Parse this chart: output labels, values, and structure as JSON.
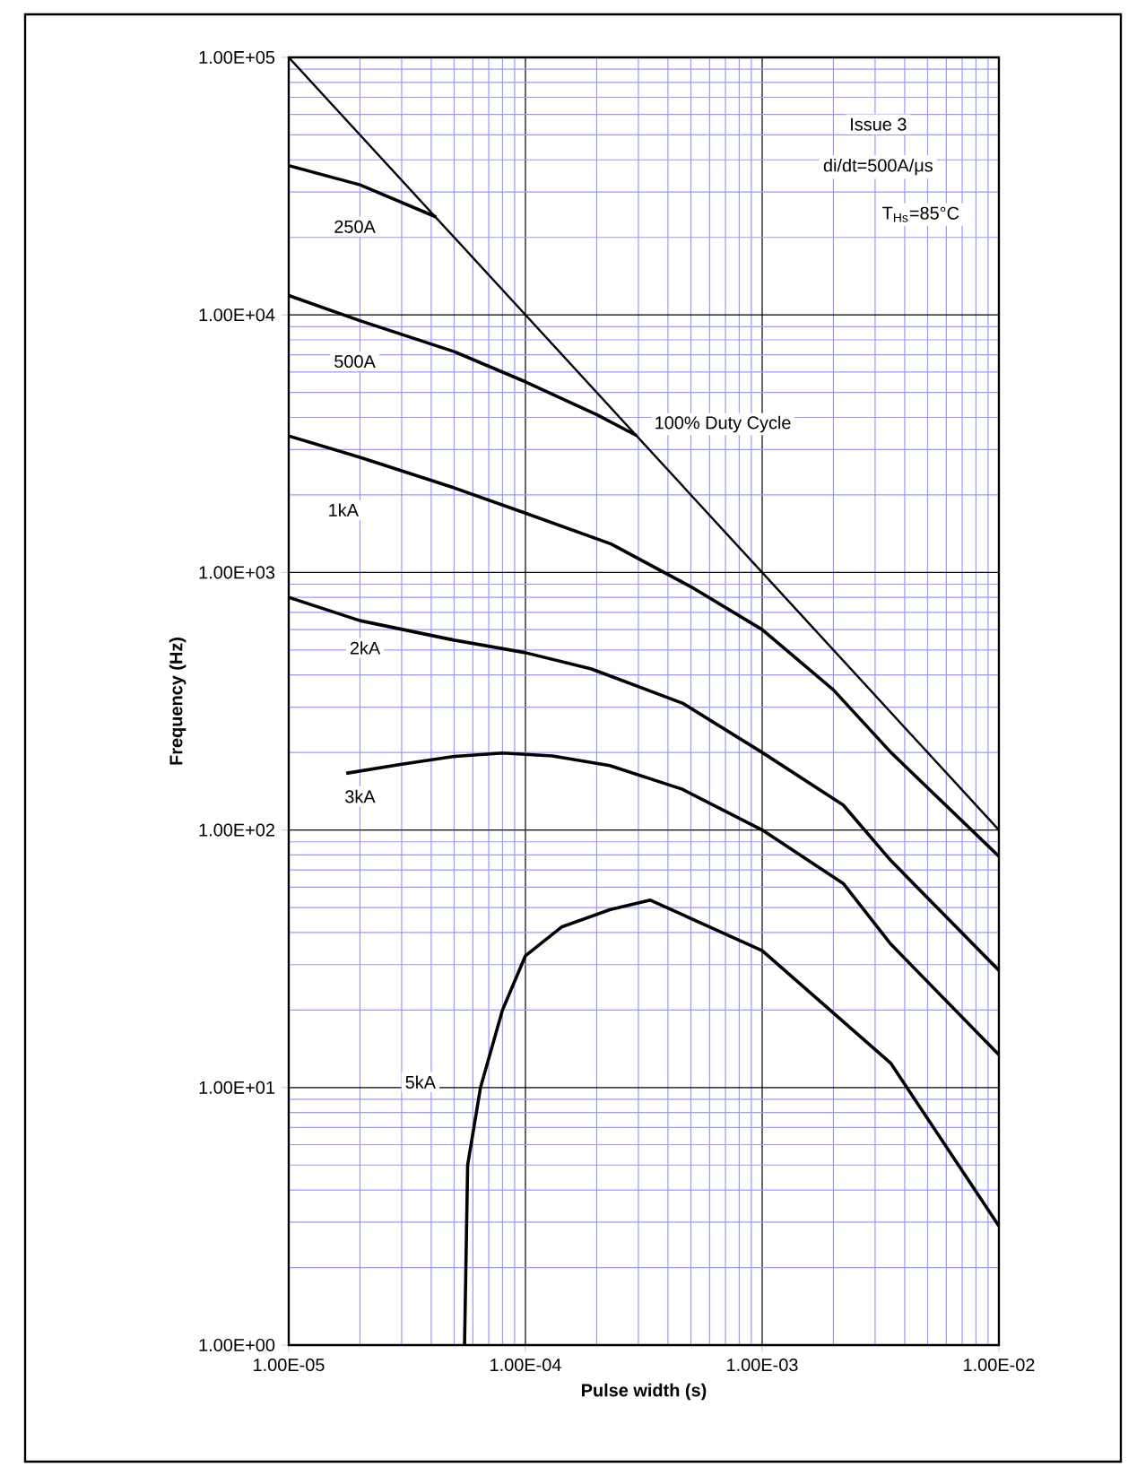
{
  "chart_data": {
    "type": "line",
    "xlabel": "Pulse width (s)",
    "ylabel": "Frequency (Hz)",
    "log": "xy",
    "grid": true,
    "marker": "none",
    "line_style": "solid",
    "xlim": [
      1e-05,
      0.01
    ],
    "ylim": [
      1,
      100000
    ],
    "xticks": [
      {
        "value": 1e-05,
        "label": "1.00E-05"
      },
      {
        "value": 2e-05,
        "label": null
      },
      {
        "value": 3e-05,
        "label": null
      },
      {
        "value": 4e-05,
        "label": null
      },
      {
        "value": 5e-05,
        "label": null
      },
      {
        "value": 6e-05,
        "label": null
      },
      {
        "value": 7e-05,
        "label": null
      },
      {
        "value": 8e-05,
        "label": null
      },
      {
        "value": 9e-05,
        "label": null
      },
      {
        "value": 0.0001,
        "label": "1.00E-04"
      },
      {
        "value": 0.0002,
        "label": null
      },
      {
        "value": 0.0003,
        "label": null
      },
      {
        "value": 0.0004,
        "label": null
      },
      {
        "value": 0.0005,
        "label": null
      },
      {
        "value": 0.0006,
        "label": null
      },
      {
        "value": 0.0007,
        "label": null
      },
      {
        "value": 0.0008,
        "label": null
      },
      {
        "value": 0.0009,
        "label": null
      },
      {
        "value": 0.001,
        "label": "1.00E-03"
      },
      {
        "value": 0.002,
        "label": null
      },
      {
        "value": 0.003,
        "label": null
      },
      {
        "value": 0.004,
        "label": null
      },
      {
        "value": 0.005,
        "label": null
      },
      {
        "value": 0.006,
        "label": null
      },
      {
        "value": 0.007,
        "label": null
      },
      {
        "value": 0.008,
        "label": null
      },
      {
        "value": 0.009,
        "label": null
      },
      {
        "value": 0.01,
        "label": "1.00E-02"
      }
    ],
    "yticks": [
      {
        "value": 1,
        "label": "1.00E+00"
      },
      {
        "value": 2,
        "label": null
      },
      {
        "value": 3,
        "label": null
      },
      {
        "value": 4,
        "label": null
      },
      {
        "value": 5,
        "label": null
      },
      {
        "value": 6,
        "label": null
      },
      {
        "value": 7,
        "label": null
      },
      {
        "value": 8,
        "label": null
      },
      {
        "value": 9,
        "label": null
      },
      {
        "value": 10,
        "label": "1.00E+01"
      },
      {
        "value": 20,
        "label": null
      },
      {
        "value": 30,
        "label": null
      },
      {
        "value": 40,
        "label": null
      },
      {
        "value": 50,
        "label": null
      },
      {
        "value": 60,
        "label": null
      },
      {
        "value": 70,
        "label": null
      },
      {
        "value": 80,
        "label": null
      },
      {
        "value": 90,
        "label": null
      },
      {
        "value": 100,
        "label": "1.00E+02"
      },
      {
        "value": 200,
        "label": null
      },
      {
        "value": 300,
        "label": null
      },
      {
        "value": 400,
        "label": null
      },
      {
        "value": 500,
        "label": null
      },
      {
        "value": 600,
        "label": null
      },
      {
        "value": 700,
        "label": null
      },
      {
        "value": 800,
        "label": null
      },
      {
        "value": 900,
        "label": null
      },
      {
        "value": 1000,
        "label": "1.00E+03"
      },
      {
        "value": 2000,
        "label": null
      },
      {
        "value": 3000,
        "label": null
      },
      {
        "value": 4000,
        "label": null
      },
      {
        "value": 5000,
        "label": null
      },
      {
        "value": 6000,
        "label": null
      },
      {
        "value": 7000,
        "label": null
      },
      {
        "value": 8000,
        "label": null
      },
      {
        "value": 9000,
        "label": null
      },
      {
        "value": 10000,
        "label": "1.00E+04"
      },
      {
        "value": 20000,
        "label": null
      },
      {
        "value": 30000,
        "label": null
      },
      {
        "value": 40000,
        "label": null
      },
      {
        "value": 50000,
        "label": null
      },
      {
        "value": 60000,
        "label": null
      },
      {
        "value": 70000,
        "label": null
      },
      {
        "value": 80000,
        "label": null
      },
      {
        "value": 90000,
        "label": null
      },
      {
        "value": 100000,
        "label": "1.00E+05"
      }
    ],
    "annotations": [
      "Issue 3",
      "di/dt=500A/μs",
      "T$_{Hs}$=85°C"
    ],
    "series": [
      {
        "name": "100% Duty Cycle",
        "color": "#000000",
        "x": [
          1e-05,
          0.0001,
          0.001,
          0.01
        ],
        "values": [
          100000,
          10000,
          1000,
          100
        ]
      },
      {
        "name": "250A",
        "color": "#000000",
        "x": [
          1e-05,
          2e-05,
          4.2e-05
        ],
        "values": [
          38000,
          32000,
          24000
        ]
      },
      {
        "name": "500A",
        "color": "#000000",
        "x": [
          1e-05,
          2e-05,
          5e-05,
          0.0001,
          0.0002,
          0.000295
        ],
        "values": [
          11900,
          9500,
          7200,
          5500,
          4100,
          3400
        ]
      },
      {
        "name": "1kA",
        "color": "#000000",
        "x": [
          1e-05,
          2e-05,
          5e-05,
          0.0001,
          0.00023,
          0.0005,
          0.001,
          0.002,
          0.0035,
          0.01
        ],
        "values": [
          3390,
          2800,
          2130,
          1700,
          1290,
          880,
          600,
          350,
          200,
          79
        ]
      },
      {
        "name": "2kA",
        "color": "#000000",
        "x": [
          1e-05,
          2e-05,
          5e-05,
          0.0001,
          0.00019,
          0.00046,
          0.001,
          0.0022,
          0.0035,
          0.01
        ],
        "values": [
          800,
          650,
          546,
          488,
          422,
          311,
          200,
          125,
          76,
          28.5
        ]
      },
      {
        "name": "3kA",
        "color": "#000000",
        "x": [
          1.75e-05,
          3e-05,
          5e-05,
          8e-05,
          0.00013,
          0.000227,
          0.00046,
          0.001,
          0.0022,
          0.0035,
          0.01
        ],
        "values": [
          166,
          180,
          193,
          199,
          194,
          178,
          144,
          100,
          62,
          36,
          13.4
        ]
      },
      {
        "name": "5kA",
        "color": "#000000",
        "x": [
          5.53e-05,
          5.7e-05,
          6.46e-05,
          8e-05,
          0.0001,
          0.000142,
          0.000227,
          0.000337,
          0.001,
          0.0035,
          0.01
        ],
        "values": [
          1,
          5,
          10,
          20,
          32.5,
          42,
          49,
          53.4,
          34,
          12.4,
          2.9
        ]
      }
    ]
  }
}
